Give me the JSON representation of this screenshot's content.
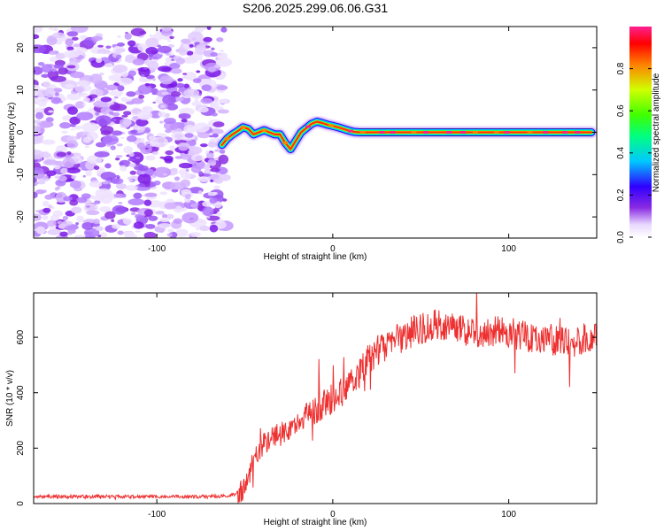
{
  "title": "S206.2025.299.06.06.G31",
  "colors": {
    "snr_line": "#ee3030",
    "axis": "#000000",
    "background": "#ffffff"
  },
  "chart_data": [
    {
      "type": "heatmap",
      "name": "spectrogram",
      "xlabel": "Height of straight line (km)",
      "ylabel": "Frequency (Hz)",
      "xlim": [
        -170,
        150
      ],
      "ylim": [
        -25,
        25
      ],
      "x_ticks": [
        -100,
        0,
        100
      ],
      "y_ticks": [
        20,
        10,
        0,
        -10,
        -20
      ],
      "noise_region_x": [
        -170,
        -62
      ],
      "ridge": {
        "description_values_only": true,
        "x": [
          -63,
          -60,
          -57,
          -54,
          -51,
          -48,
          -45,
          -42,
          -39,
          -36,
          -33,
          -30,
          -27,
          -24,
          -21,
          -18,
          -15,
          -12,
          -9,
          -6,
          -3,
          0,
          3,
          6,
          9,
          12,
          15,
          20,
          40,
          60,
          80,
          100,
          120,
          140,
          147
        ],
        "y": [
          -3,
          -1.5,
          -0.5,
          0.3,
          1.2,
          0.8,
          -0.5,
          0,
          0.5,
          0,
          -0.5,
          -0.5,
          -2.5,
          -4,
          -2,
          0,
          1,
          2,
          2.5,
          2.2,
          1.8,
          1.5,
          1.2,
          0.8,
          0.4,
          0.1,
          0,
          0,
          0,
          0,
          0,
          0,
          0,
          0,
          0
        ]
      },
      "colorbar": {
        "label": "Normalized spectral amplitude",
        "ticks": [
          0.0,
          0.2,
          0.4,
          0.6,
          0.8
        ],
        "tick_labels": [
          "0.0",
          "0.2",
          "0.4",
          "0.6",
          "0.8"
        ]
      }
    },
    {
      "type": "line",
      "name": "snr",
      "xlabel": "Height of straight line (km)",
      "ylabel": "SNR (10 * v/v)",
      "xlim": [
        -170,
        150
      ],
      "ylim": [
        0,
        760
      ],
      "x_ticks": [
        -100,
        0,
        100
      ],
      "y_ticks": [
        0,
        200,
        400,
        600
      ],
      "series": [
        {
          "name": "SNR",
          "x": [
            -170,
            -150,
            -130,
            -110,
            -90,
            -70,
            -60,
            -55,
            -50,
            -45,
            -40,
            -35,
            -30,
            -25,
            -20,
            -15,
            -10,
            -5,
            0,
            5,
            10,
            15,
            20,
            25,
            30,
            35,
            40,
            45,
            50,
            55,
            60,
            65,
            70,
            75,
            80,
            85,
            90,
            95,
            100,
            105,
            110,
            115,
            120,
            125,
            130,
            135,
            140,
            145,
            150
          ],
          "y": [
            25,
            25,
            25,
            25,
            25,
            25,
            28,
            35,
            60,
            150,
            210,
            230,
            250,
            270,
            290,
            320,
            340,
            360,
            380,
            400,
            430,
            470,
            520,
            550,
            570,
            590,
            600,
            620,
            630,
            640,
            650,
            640,
            630,
            620,
            610,
            600,
            620,
            630,
            620,
            610,
            600,
            600,
            600,
            590,
            590,
            580,
            590,
            600,
            610
          ]
        }
      ]
    }
  ]
}
